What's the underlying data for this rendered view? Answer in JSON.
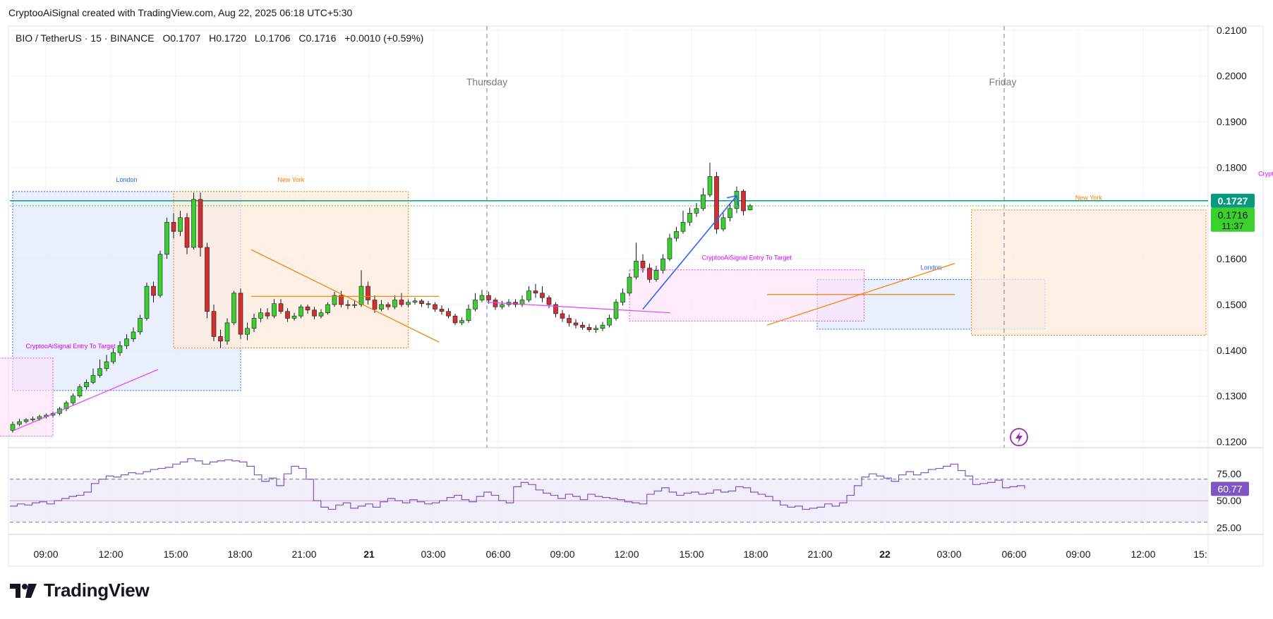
{
  "header": {
    "attribution": "CryptooAiSignal created with TradingView.com, Aug 22, 2025 06:18 UTC+5:30"
  },
  "footer": {
    "brand": "TradingView"
  },
  "colors": {
    "up": "#3ad12d",
    "down": "#d32f2f",
    "rsi": "#7e57c2",
    "rsi_fill": "#ede7f6",
    "current_price_bg": "#3ad12d",
    "level_line": "#089981",
    "london_box": "#e3eafc",
    "newyork_box": "#fdebdc",
    "signal_box": "#fde0f6"
  },
  "chart_data": {
    "type": "candlestick",
    "symbol_line": {
      "symbol": "BIO / TetherUS · 15 · BINANCE",
      "open": "O0.1707",
      "high": "H0.1720",
      "low": "L0.1706",
      "close": "C0.1716",
      "change": "+0.0010 (+0.59%)"
    },
    "price_axis": {
      "ticks": [
        "0.2100",
        "0.2000",
        "0.1900",
        "0.1800",
        "0.1600",
        "0.1500",
        "0.1400",
        "0.1300",
        "0.1200"
      ],
      "tick_values": [
        0.21,
        0.2,
        0.19,
        0.18,
        0.16,
        0.15,
        0.14,
        0.13,
        0.12
      ],
      "ylim": [
        0.1187,
        0.2109
      ]
    },
    "price_labels": {
      "level": "0.1727",
      "last": "0.1716",
      "countdown": "11:37"
    },
    "level_line_value": 0.1727,
    "time_axis": {
      "ticks": [
        "09:00",
        "12:00",
        "15:00",
        "18:00",
        "21:00",
        "21",
        "03:00",
        "06:00",
        "09:00",
        "12:00",
        "15:00",
        "18:00",
        "21:00",
        "22",
        "03:00",
        "06:00",
        "09:00",
        "12:00",
        "15:"
      ],
      "bold": [
        "21",
        "22"
      ]
    },
    "day_markers": [
      "Thursday",
      "Friday"
    ],
    "sessions": [
      {
        "label": "London",
        "kind": "london",
        "start": 0.0,
        "end": 8.5,
        "high": 0.1747,
        "low": 0.1312
      },
      {
        "label": "New York",
        "kind": "newyork",
        "start": 6.0,
        "end": 14.75,
        "high": 0.1747,
        "low": 0.1405
      },
      {
        "label": "London",
        "kind": "london",
        "start": 30.0,
        "end": 38.5,
        "high": 0.1555,
        "low": 0.1446
      },
      {
        "label": "New York",
        "kind": "newyork",
        "start": 35.75,
        "end": 44.5,
        "high": 0.1707,
        "low": 0.1433
      }
    ],
    "signals": [
      {
        "label": "CryptooAiSignal  Entry  To  Target",
        "start": -5.67,
        "end": 1.5,
        "high": 0.1383,
        "low": 0.1212
      },
      {
        "label": "CryptooAiSignal  Entry  To  Target",
        "start": 23.0,
        "end": 31.75,
        "high": 0.1576,
        "low": 0.1464
      },
      {
        "label": "CryptooAiSignal  Entry  To  Target",
        "start": 47.75,
        "end": 48.5,
        "high": 0.176,
        "low": 0.1695
      }
    ],
    "candles": [
      [
        0.1225,
        0.1238,
        0.1244,
        0.122
      ],
      [
        0.1238,
        0.1244,
        0.125,
        0.1234
      ],
      [
        0.1244,
        0.1248,
        0.1252,
        0.124
      ],
      [
        0.1248,
        0.125,
        0.1255,
        0.1244
      ],
      [
        0.125,
        0.1255,
        0.1259,
        0.1246
      ],
      [
        0.1255,
        0.1258,
        0.1262,
        0.1251
      ],
      [
        0.1258,
        0.1262,
        0.1266,
        0.1254
      ],
      [
        0.1262,
        0.1272,
        0.1276,
        0.1258
      ],
      [
        0.1272,
        0.1285,
        0.129,
        0.1267
      ],
      [
        0.1285,
        0.13,
        0.1306,
        0.128
      ],
      [
        0.13,
        0.132,
        0.1326,
        0.1296
      ],
      [
        0.132,
        0.133,
        0.1336,
        0.1314
      ],
      [
        0.133,
        0.1345,
        0.136,
        0.1326
      ],
      [
        0.1345,
        0.136,
        0.138,
        0.134
      ],
      [
        0.136,
        0.1375,
        0.139,
        0.1354
      ],
      [
        0.1375,
        0.1395,
        0.1405,
        0.137
      ],
      [
        0.1395,
        0.141,
        0.142,
        0.1388
      ],
      [
        0.141,
        0.1425,
        0.1435,
        0.1403
      ],
      [
        0.1425,
        0.144,
        0.145,
        0.1418
      ],
      [
        0.144,
        0.147,
        0.1478,
        0.1434
      ],
      [
        0.147,
        0.154,
        0.1548,
        0.1465
      ],
      [
        0.154,
        0.152,
        0.155,
        0.1505
      ],
      [
        0.152,
        0.161,
        0.1618,
        0.1515
      ],
      [
        0.161,
        0.168,
        0.169,
        0.16
      ],
      [
        0.168,
        0.166,
        0.17,
        0.1645
      ],
      [
        0.166,
        0.169,
        0.1705,
        0.165
      ],
      [
        0.169,
        0.1625,
        0.17,
        0.161
      ],
      [
        0.1625,
        0.173,
        0.1745,
        0.162
      ],
      [
        0.173,
        0.1625,
        0.1745,
        0.1605
      ],
      [
        0.1625,
        0.1485,
        0.1635,
        0.147
      ],
      [
        0.1485,
        0.143,
        0.15,
        0.142
      ],
      [
        0.143,
        0.142,
        0.1445,
        0.1405
      ],
      [
        0.142,
        0.146,
        0.147,
        0.1412
      ],
      [
        0.146,
        0.1525,
        0.153,
        0.1455
      ],
      [
        0.1525,
        0.1435,
        0.1535,
        0.1425
      ],
      [
        0.1435,
        0.1448,
        0.146,
        0.1422
      ],
      [
        0.1448,
        0.147,
        0.148,
        0.144
      ],
      [
        0.147,
        0.1482,
        0.1492,
        0.1462
      ],
      [
        0.1482,
        0.1475,
        0.1492,
        0.1468
      ],
      [
        0.1475,
        0.1502,
        0.1512,
        0.147
      ],
      [
        0.1502,
        0.1485,
        0.1512,
        0.148
      ],
      [
        0.1485,
        0.147,
        0.1492,
        0.1462
      ],
      [
        0.147,
        0.1475,
        0.1482,
        0.1465
      ],
      [
        0.1475,
        0.1495,
        0.15,
        0.147
      ],
      [
        0.1495,
        0.1488,
        0.15,
        0.148
      ],
      [
        0.1488,
        0.1475,
        0.1495,
        0.1468
      ],
      [
        0.1475,
        0.1482,
        0.149,
        0.147
      ],
      [
        0.1482,
        0.15,
        0.1505,
        0.1478
      ],
      [
        0.15,
        0.152,
        0.1528,
        0.1495
      ],
      [
        0.152,
        0.15,
        0.153,
        0.1494
      ],
      [
        0.15,
        0.1498,
        0.151,
        0.149
      ],
      [
        0.1498,
        0.15,
        0.151,
        0.1492
      ],
      [
        0.15,
        0.154,
        0.1575,
        0.1495
      ],
      [
        0.154,
        0.151,
        0.155,
        0.15
      ],
      [
        0.151,
        0.149,
        0.152,
        0.1482
      ],
      [
        0.149,
        0.15,
        0.151,
        0.1485
      ],
      [
        0.15,
        0.1495,
        0.1505,
        0.1488
      ],
      [
        0.1495,
        0.151,
        0.152,
        0.149
      ],
      [
        0.151,
        0.15,
        0.1525,
        0.1495
      ],
      [
        0.15,
        0.1505,
        0.151,
        0.1495
      ],
      [
        0.1505,
        0.1508,
        0.1515,
        0.15
      ],
      [
        0.1508,
        0.1502,
        0.1512,
        0.1495
      ],
      [
        0.1502,
        0.15,
        0.1508,
        0.1492
      ],
      [
        0.15,
        0.149,
        0.1505,
        0.1484
      ],
      [
        0.149,
        0.1485,
        0.1498,
        0.1478
      ],
      [
        0.1485,
        0.1475,
        0.1492,
        0.147
      ],
      [
        0.1475,
        0.146,
        0.148,
        0.1455
      ],
      [
        0.146,
        0.1465,
        0.1472,
        0.1455
      ],
      [
        0.1465,
        0.149,
        0.15,
        0.146
      ],
      [
        0.149,
        0.151,
        0.1525,
        0.1485
      ],
      [
        0.151,
        0.152,
        0.1532,
        0.1505
      ],
      [
        0.152,
        0.151,
        0.1528,
        0.1502
      ],
      [
        0.151,
        0.1495,
        0.1515,
        0.1488
      ],
      [
        0.1495,
        0.15,
        0.1508,
        0.149
      ],
      [
        0.15,
        0.1505,
        0.1512,
        0.1495
      ],
      [
        0.1505,
        0.15,
        0.1512,
        0.1494
      ],
      [
        0.15,
        0.151,
        0.152,
        0.1495
      ],
      [
        0.151,
        0.153,
        0.154,
        0.1505
      ],
      [
        0.153,
        0.1525,
        0.1545,
        0.1515
      ],
      [
        0.1525,
        0.1515,
        0.154,
        0.1505
      ],
      [
        0.1515,
        0.15,
        0.152,
        0.1492
      ],
      [
        0.15,
        0.148,
        0.1505,
        0.1472
      ],
      [
        0.148,
        0.147,
        0.1488,
        0.1462
      ],
      [
        0.147,
        0.146,
        0.1478,
        0.1452
      ],
      [
        0.146,
        0.1455,
        0.1468,
        0.1448
      ],
      [
        0.1455,
        0.145,
        0.1462,
        0.1445
      ],
      [
        0.145,
        0.1445,
        0.1458,
        0.144
      ],
      [
        0.1445,
        0.1448,
        0.1455,
        0.1438
      ],
      [
        0.1448,
        0.1455,
        0.1462,
        0.1442
      ],
      [
        0.1455,
        0.147,
        0.1478,
        0.145
      ],
      [
        0.147,
        0.1505,
        0.1512,
        0.1465
      ],
      [
        0.1505,
        0.1525,
        0.1535,
        0.1498
      ],
      [
        0.1525,
        0.156,
        0.1568,
        0.152
      ],
      [
        0.156,
        0.1595,
        0.1635,
        0.1555
      ],
      [
        0.1595,
        0.158,
        0.161,
        0.157
      ],
      [
        0.158,
        0.1555,
        0.159,
        0.1548
      ],
      [
        0.1555,
        0.1575,
        0.1585,
        0.155
      ],
      [
        0.1575,
        0.16,
        0.161,
        0.1568
      ],
      [
        0.16,
        0.1645,
        0.1655,
        0.1595
      ],
      [
        0.1645,
        0.166,
        0.167,
        0.1638
      ],
      [
        0.166,
        0.168,
        0.1705,
        0.1655
      ],
      [
        0.168,
        0.17,
        0.1712,
        0.1672
      ],
      [
        0.17,
        0.171,
        0.1722,
        0.1692
      ],
      [
        0.171,
        0.174,
        0.1755,
        0.1705
      ],
      [
        0.174,
        0.178,
        0.181,
        0.1735
      ],
      [
        0.178,
        0.1665,
        0.179,
        0.1655
      ],
      [
        0.1665,
        0.169,
        0.17,
        0.166
      ],
      [
        0.169,
        0.171,
        0.1722,
        0.1682
      ],
      [
        0.171,
        0.1748,
        0.1758,
        0.17
      ],
      [
        0.1748,
        0.1705,
        0.1752,
        0.1695
      ],
      [
        0.1707,
        0.1716,
        0.172,
        0.1706
      ]
    ],
    "projection": {
      "from": [
        23.5,
        0.149
      ],
      "to": [
        27.0,
        0.1738
      ]
    },
    "rsi": {
      "name": "RSI",
      "value_label": "60.77",
      "ticks": [
        "75.00",
        "50.00",
        "25.00"
      ],
      "tick_values": [
        75,
        50,
        25
      ],
      "ylim": [
        20,
        96
      ],
      "upper_band": 70,
      "lower_band": 30,
      "midline": 50,
      "values": [
        45,
        47,
        46,
        48,
        49,
        47,
        50,
        52,
        54,
        55,
        58,
        66,
        70,
        73,
        72,
        74,
        76,
        75,
        77,
        79,
        80,
        81,
        84,
        86,
        89,
        87,
        84,
        86,
        87,
        88,
        87,
        86,
        82,
        74,
        68,
        71,
        64,
        75,
        82,
        80,
        70,
        50,
        44,
        42,
        46,
        48,
        43,
        45,
        47,
        44,
        49,
        52,
        50,
        48,
        51,
        49,
        47,
        48,
        50,
        53,
        55,
        51,
        49,
        54,
        58,
        55,
        50,
        48,
        63,
        67,
        65,
        60,
        57,
        55,
        52,
        56,
        54,
        51,
        56,
        54,
        53,
        52,
        51,
        49,
        48,
        47,
        56,
        59,
        62,
        58,
        55,
        57,
        58,
        56,
        57,
        60,
        58,
        59,
        63,
        62,
        58,
        56,
        54,
        50,
        46,
        44,
        45,
        42,
        43,
        44,
        47,
        45,
        48,
        55,
        64,
        72,
        75,
        73,
        71,
        68,
        74,
        77,
        74,
        76,
        79,
        80,
        82,
        84,
        78,
        73,
        65,
        66,
        67,
        69,
        62,
        63,
        64,
        61
      ]
    }
  }
}
